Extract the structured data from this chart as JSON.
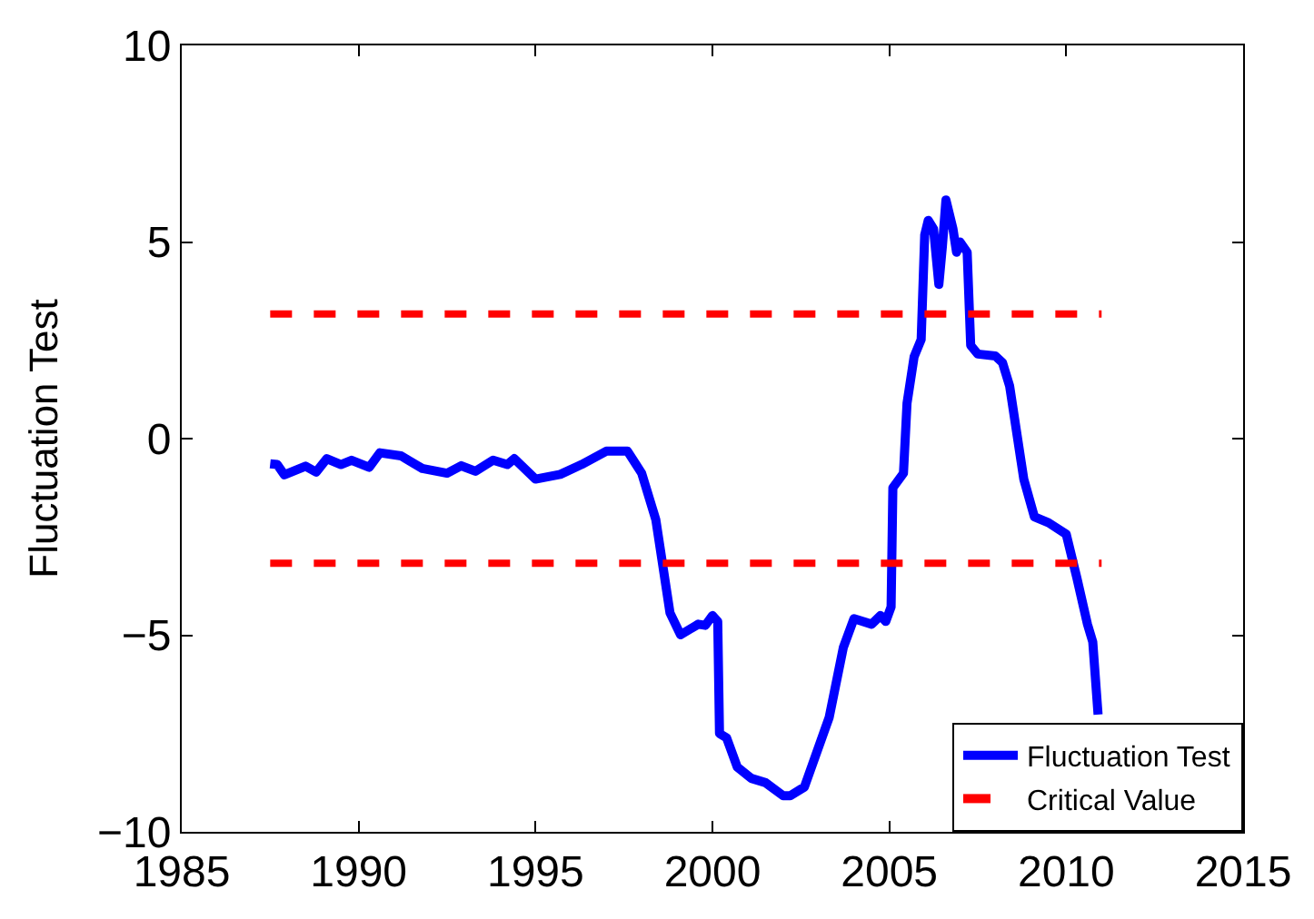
{
  "chart_data": {
    "type": "line",
    "ylabel": "Fluctuation Test",
    "xlim": [
      1985,
      2015
    ],
    "xticks": [
      1985,
      1990,
      1995,
      2000,
      2005,
      2010,
      2015
    ],
    "ylim": [
      -10,
      10
    ],
    "yticks": [
      {
        "value": -10,
        "label": "−10"
      },
      {
        "value": -5,
        "label": "−5"
      },
      0,
      5,
      10
    ],
    "series": [
      {
        "name": "Fluctuation Test",
        "color": "#0000ff",
        "line_style": "solid",
        "x": [
          1987.5,
          1987.7,
          1987.9,
          1988.5,
          1988.8,
          1989.1,
          1989.5,
          1989.8,
          1990.3,
          1990.6,
          1991.2,
          1991.8,
          1992.5,
          1992.9,
          1993.3,
          1993.8,
          1994.2,
          1994.4,
          1995.0,
          1995.7,
          1996.3,
          1997.0,
          1997.6,
          1998.0,
          1998.4,
          1998.8,
          1999.1,
          1999.6,
          1999.8,
          2000.0,
          2000.15,
          2000.2,
          2000.4,
          2000.7,
          2001.1,
          2001.5,
          2002.0,
          2002.2,
          2002.6,
          2003.3,
          2003.7,
          2004.0,
          2004.5,
          2004.75,
          2004.9,
          2005.05,
          2005.1,
          2005.4,
          2005.5,
          2005.7,
          2005.9,
          2006.0,
          2006.1,
          2006.25,
          2006.4,
          2006.5,
          2006.6,
          2006.8,
          2006.9,
          2007.0,
          2007.2,
          2007.3,
          2007.5,
          2008.0,
          2008.2,
          2008.4,
          2008.8,
          2009.1,
          2009.5,
          2010.0,
          2010.3,
          2010.6,
          2010.75,
          2010.9
        ],
        "values": [
          -0.64,
          -0.66,
          -0.92,
          -0.7,
          -0.85,
          -0.51,
          -0.66,
          -0.55,
          -0.73,
          -0.36,
          -0.44,
          -0.76,
          -0.88,
          -0.69,
          -0.83,
          -0.55,
          -0.66,
          -0.51,
          -1.03,
          -0.91,
          -0.66,
          -0.32,
          -0.32,
          -0.88,
          -2.06,
          -4.43,
          -4.99,
          -4.72,
          -4.75,
          -4.5,
          -4.65,
          -7.5,
          -7.61,
          -8.35,
          -8.64,
          -8.75,
          -9.08,
          -9.08,
          -8.86,
          -7.09,
          -5.31,
          -4.58,
          -4.72,
          -4.5,
          -4.65,
          -4.28,
          -1.25,
          -0.88,
          0.9,
          2.08,
          2.52,
          5.18,
          5.55,
          5.33,
          3.92,
          4.89,
          6.07,
          5.33,
          4.74,
          5.0,
          4.74,
          2.37,
          2.15,
          2.1,
          1.93,
          1.34,
          -1.03,
          -1.99,
          -2.14,
          -2.43,
          -3.54,
          -4.72,
          -5.17,
          -7.02
        ]
      },
      {
        "name": "Critical Value",
        "color": "#ff0000",
        "line_style": "dashed",
        "x": [
          1987.5,
          2011.0
        ],
        "values": [
          3.17,
          3.17
        ]
      },
      {
        "name": null,
        "color": "#ff0000",
        "line_style": "dashed",
        "x": [
          1987.5,
          2011.0
        ],
        "values": [
          -3.17,
          -3.17
        ]
      }
    ],
    "legend": "bottom right",
    "marker": "none"
  }
}
